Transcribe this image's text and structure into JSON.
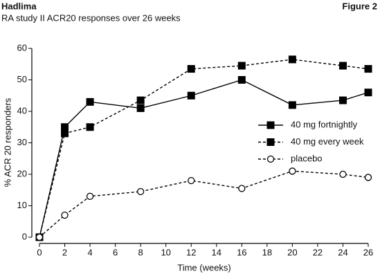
{
  "chart_data": {
    "type": "line",
    "title": "Hadlima",
    "figure_label": "Figure 2",
    "subtitle": "RA study II ACR20 responses over 26 weeks",
    "x_label": "Time (weeks)",
    "y_label": "% ACR 20 responders",
    "x": [
      0,
      2,
      4,
      8,
      12,
      16,
      20,
      24,
      26
    ],
    "series": [
      {
        "name": "40 mg fortnightly",
        "color": "#000000",
        "dashed": false,
        "marker": "square",
        "values": [
          0,
          35,
          43,
          41,
          45,
          50,
          42,
          43.5,
          46
        ]
      },
      {
        "name": "40 mg every week",
        "color": "#000000",
        "dashed": true,
        "marker": "square",
        "values": [
          0,
          33,
          35,
          43.5,
          53.5,
          54.5,
          56.5,
          54.5,
          53.5
        ]
      },
      {
        "name": "placebo",
        "color": "#000000",
        "dashed": true,
        "marker": "circle-open",
        "values": [
          0,
          7,
          13,
          14.5,
          18,
          15.5,
          21,
          20,
          19
        ]
      }
    ],
    "xlim": [
      0,
      26
    ],
    "xticks": [
      0,
      2,
      4,
      6,
      8,
      10,
      12,
      14,
      16,
      18,
      20,
      22,
      24,
      26
    ],
    "ylim": [
      0,
      60
    ],
    "yticks": [
      0,
      10,
      20,
      30,
      40,
      50,
      60
    ],
    "grid": false,
    "legend": "right"
  }
}
